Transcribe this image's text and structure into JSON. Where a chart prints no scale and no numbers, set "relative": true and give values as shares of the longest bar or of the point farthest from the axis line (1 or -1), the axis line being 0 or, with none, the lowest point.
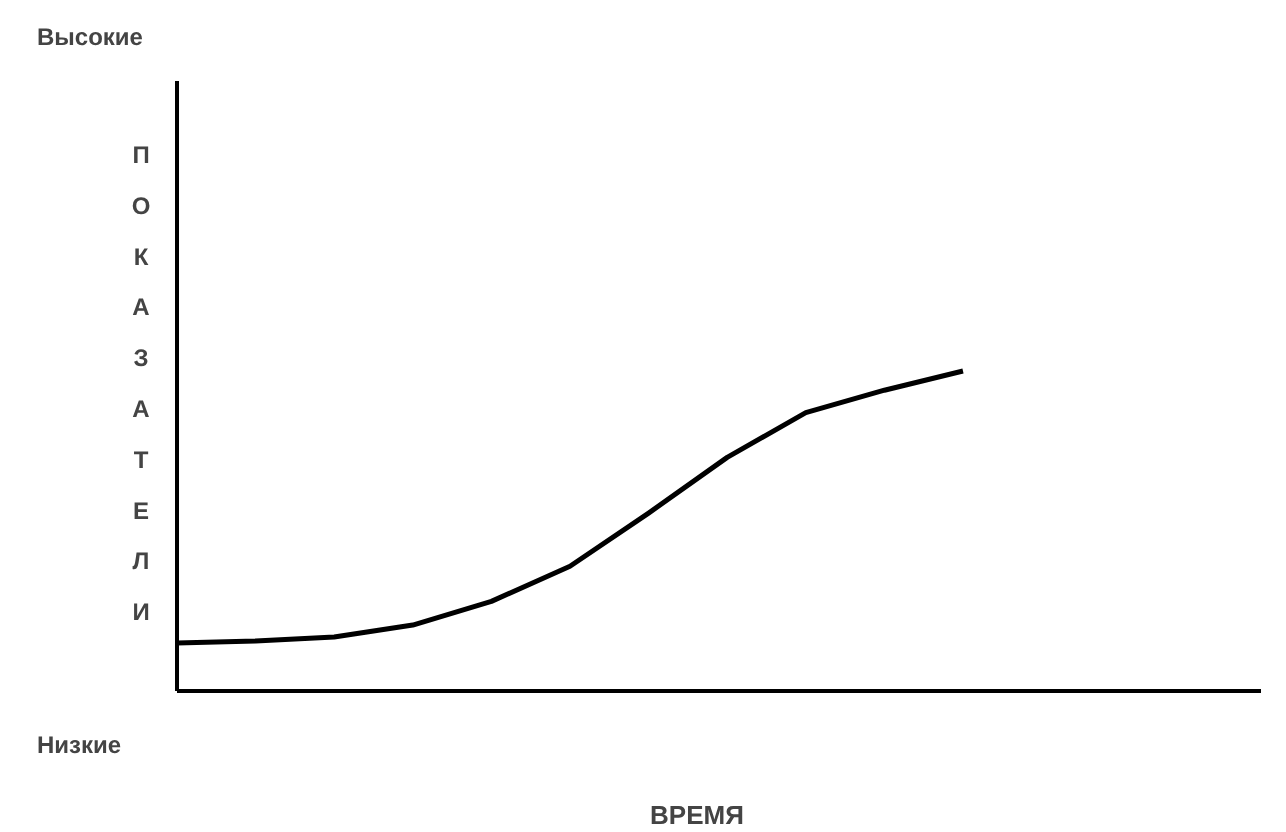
{
  "chart_data": {
    "type": "line",
    "relative": true,
    "xlabel": "ВРЕМЯ",
    "ylabel": "ПОКАЗАТЕЛИ",
    "annotations": [
      "Высокие",
      "Низкие"
    ],
    "categories": [
      null,
      null,
      null,
      null,
      null,
      null,
      null,
      null,
      null,
      null,
      null
    ],
    "series": [
      {
        "color": "#000000",
        "values": [
          0.15,
          0.156,
          0.169,
          0.206,
          0.28,
          0.39,
          0.556,
          0.73,
          0.87,
          0.94,
          1.0
        ]
      }
    ],
    "marker": "none",
    "line_style": "solid"
  }
}
